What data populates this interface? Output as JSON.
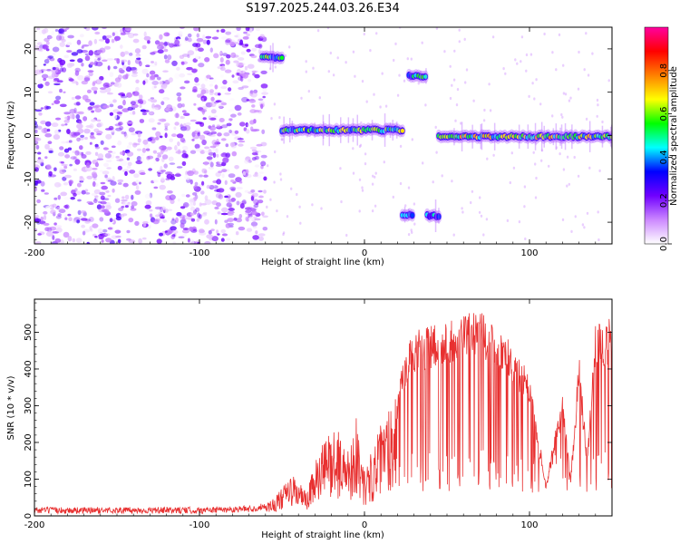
{
  "title": "S197.2025.244.03.26.E34",
  "chart_data": [
    {
      "type": "heatmap",
      "name": "spectrogram",
      "xlabel": "Height of straight line (km)",
      "ylabel": "Frequency (Hz)",
      "xlim": [
        -200,
        150
      ],
      "ylim": [
        -25,
        25
      ],
      "xticks": [
        -200,
        -100,
        0,
        100
      ],
      "yticks": [
        -20,
        -10,
        0,
        10,
        20
      ],
      "xtick_labels": [
        "-200",
        "-100",
        "0",
        "100"
      ],
      "ytick_labels": [
        "-20",
        "-10",
        "0",
        "10",
        "20"
      ],
      "colorbar": {
        "label": "Normalized spectral amplitude",
        "range": [
          0,
          1
        ],
        "ticks": [
          0.0,
          0.2,
          0.4,
          0.6,
          0.8
        ],
        "tick_labels": [
          "0.0",
          "0.2",
          "0.4",
          "0.6",
          "0.8"
        ],
        "colors": [
          "#ffffff",
          "#cc88ff",
          "#7000ff",
          "#0000ff",
          "#00ffff",
          "#00ff00",
          "#ffff00",
          "#ff8000",
          "#ff0000",
          "#ff00a0"
        ]
      },
      "features": [
        {
          "desc": "noise",
          "x": [
            -200,
            -60
          ],
          "y": [
            -25,
            25
          ],
          "level": 0.12
        },
        {
          "desc": "line",
          "x": [
            -62,
            -50
          ],
          "y": [
            17.5,
            18.5
          ],
          "level": 0.45
        },
        {
          "desc": "line",
          "x": [
            -50,
            23
          ],
          "y": [
            0,
            2.5
          ],
          "level": 0.5
        },
        {
          "desc": "line",
          "x": [
            27,
            37
          ],
          "y": [
            13,
            14.5
          ],
          "level": 0.45
        },
        {
          "desc": "line",
          "x": [
            23,
            29
          ],
          "y": [
            -18.5,
            -18
          ],
          "level": 0.35
        },
        {
          "desc": "line",
          "x": [
            38,
            45
          ],
          "y": [
            -19,
            -18
          ],
          "level": 0.35
        },
        {
          "desc": "line",
          "x": [
            45,
            150
          ],
          "y": [
            -1,
            0.5
          ],
          "level": 0.55
        }
      ]
    },
    {
      "type": "line",
      "name": "snr",
      "xlabel": "Height of straight line (km)",
      "ylabel": "SNR (10 * v/v)",
      "xlim": [
        -200,
        150
      ],
      "ylim": [
        0,
        590
      ],
      "xticks": [
        -200,
        -100,
        0,
        100
      ],
      "yticks": [
        0,
        100,
        200,
        300,
        400,
        500
      ],
      "xtick_labels": [
        "-200",
        "-100",
        "0",
        "100"
      ],
      "ytick_labels": [
        "0",
        "100",
        "200",
        "300",
        "400",
        "500"
      ],
      "color": "#e83030",
      "series": [
        {
          "name": "SNR",
          "x": [
            -200,
            -150,
            -100,
            -65,
            -55,
            -50,
            -45,
            -40,
            -35,
            -30,
            -25,
            -20,
            -15,
            -10,
            -5,
            0,
            5,
            10,
            15,
            20,
            25,
            30,
            40,
            50,
            60,
            70,
            80,
            90,
            100,
            105,
            110,
            115,
            120,
            125,
            130,
            135,
            140,
            145,
            150
          ],
          "values": [
            15,
            15,
            15,
            20,
            40,
            60,
            90,
            80,
            50,
            120,
            160,
            200,
            180,
            150,
            220,
            100,
            150,
            200,
            250,
            300,
            420,
            460,
            470,
            480,
            500,
            510,
            480,
            420,
            350,
            200,
            80,
            200,
            300,
            100,
            400,
            150,
            480,
            470,
            500
          ]
        }
      ]
    }
  ]
}
